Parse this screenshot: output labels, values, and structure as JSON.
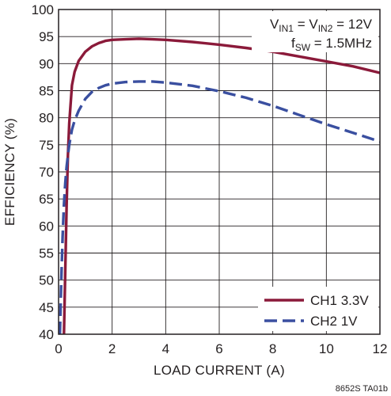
{
  "chart_data": {
    "type": "line",
    "xlabel": "LOAD CURRENT (A)",
    "ylabel": "EFFICIENCY (%)",
    "xlim": [
      0,
      12
    ],
    "ylim": [
      40,
      100
    ],
    "xticks": [
      "0",
      "2",
      "4",
      "6",
      "8",
      "10",
      "12"
    ],
    "yticks": [
      "40",
      "45",
      "50",
      "55",
      "60",
      "65",
      "70",
      "75",
      "80",
      "85",
      "90",
      "95",
      "100"
    ],
    "grid": true,
    "legend_position": "bottom-right",
    "annotation": {
      "line1": {
        "v1": "V",
        "sub1": "IN1",
        "mid": " = V",
        "sub2": "IN2",
        "tail": " = 12V"
      },
      "line2": {
        "f": "f",
        "sub": "SW",
        "tail": " = 1.5MHz"
      }
    },
    "series": [
      {
        "name": "CH1 3.3V",
        "color": "#8b1a3a",
        "dash": "solid",
        "x": [
          0.2,
          0.25,
          0.3,
          0.35,
          0.4,
          0.5,
          0.6,
          0.75,
          1.0,
          1.25,
          1.5,
          1.75,
          2.0,
          2.5,
          3.0,
          3.5,
          4.0,
          5.0,
          6.0,
          7.0,
          8.0,
          9.0,
          10.0,
          11.0,
          12.0
        ],
        "y": [
          40,
          52,
          64,
          73,
          79,
          86,
          88.5,
          90.5,
          92.2,
          93.2,
          93.8,
          94.2,
          94.4,
          94.5,
          94.6,
          94.5,
          94.4,
          94.0,
          93.5,
          92.9,
          92.2,
          91.3,
          90.4,
          89.5,
          88.3
        ]
      },
      {
        "name": "CH2 1V",
        "color": "#3a4fa0",
        "dash": "dashed",
        "x": [
          0.05,
          0.1,
          0.15,
          0.2,
          0.25,
          0.3,
          0.35,
          0.4,
          0.5,
          0.6,
          0.75,
          1.0,
          1.25,
          1.5,
          1.75,
          2.0,
          2.5,
          3.0,
          3.5,
          4.0,
          5.0,
          6.0,
          7.0,
          8.0,
          9.0,
          10.0,
          11.0,
          12.0
        ],
        "y": [
          40,
          50,
          58,
          64,
          68,
          71,
          73,
          75,
          77.8,
          79.5,
          81.3,
          83.5,
          84.8,
          85.5,
          86.0,
          86.3,
          86.6,
          86.7,
          86.7,
          86.5,
          85.9,
          84.9,
          83.7,
          82.2,
          80.5,
          78.8,
          77.2,
          75.6
        ]
      }
    ]
  },
  "figure_id": "8652S TA01b"
}
